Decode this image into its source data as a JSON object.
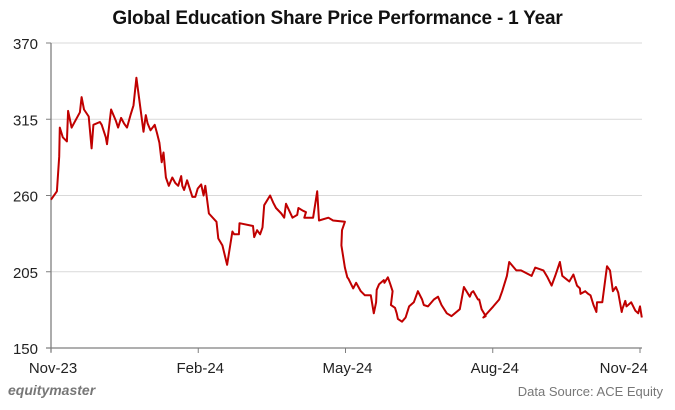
{
  "title": "Global Education Share Price Performance - 1 Year",
  "branding": "equitymaster",
  "source": "Data Source: ACE Equity",
  "colors": {
    "line": "#C00000",
    "grid": "#D9D9D9",
    "axis": "#7F7F7F",
    "text": "#222222"
  },
  "chart_data": {
    "type": "line",
    "title": "Global Education Share Price Performance - 1 Year",
    "xlabel": "",
    "ylabel": "",
    "ylim": [
      150,
      370
    ],
    "yticks": [
      150,
      205,
      260,
      315,
      370
    ],
    "xticks": [
      "Nov-23",
      "Feb-24",
      "May-24",
      "Aug-24",
      "Nov-24"
    ],
    "grid": "horizontal",
    "legend": "none",
    "series": [
      {
        "name": "Global Education",
        "x_frac": [
          0.0,
          0.01,
          0.014,
          0.015,
          0.02,
          0.027,
          0.029,
          0.035,
          0.049,
          0.052,
          0.056,
          0.064,
          0.069,
          0.072,
          0.083,
          0.086,
          0.093,
          0.095,
          0.102,
          0.11,
          0.114,
          0.119,
          0.124,
          0.129,
          0.135,
          0.14,
          0.145,
          0.15,
          0.157,
          0.161,
          0.164,
          0.169,
          0.176,
          0.18,
          0.184,
          0.188,
          0.191,
          0.195,
          0.2,
          0.206,
          0.211,
          0.216,
          0.221,
          0.223,
          0.226,
          0.231,
          0.24,
          0.245,
          0.249,
          0.255,
          0.259,
          0.262,
          0.268,
          0.281,
          0.284,
          0.291,
          0.299,
          0.308,
          0.311,
          0.319,
          0.32,
          0.343,
          0.345,
          0.35,
          0.355,
          0.359,
          0.362,
          0.372,
          0.377,
          0.382,
          0.391,
          0.396,
          0.399,
          0.41,
          0.418,
          0.42,
          0.428,
          0.433,
          0.43,
          0.445,
          0.452,
          0.455,
          0.471,
          0.479,
          0.499,
          0.494,
          0.493,
          0.499,
          0.503,
          0.505,
          0.513,
          0.518,
          0.526,
          0.533,
          0.543,
          0.548,
          0.552,
          0.553,
          0.557,
          0.565,
          0.566,
          0.572,
          0.576,
          0.58,
          0.577,
          0.584,
          0.587,
          0.589,
          0.596,
          0.602,
          0.608,
          0.616,
          0.623,
          0.63,
          0.633,
          0.64,
          0.65,
          0.657,
          0.663,
          0.672,
          0.68,
          0.694,
          0.701,
          0.711,
          0.714,
          0.717,
          0.725,
          0.727,
          0.731,
          0.738,
          0.734,
          0.751,
          0.761,
          0.766,
          0.774,
          0.778,
          0.79,
          0.798,
          0.816,
          0.822,
          0.836,
          0.843,
          0.85,
          0.856,
          0.864,
          0.868,
          0.874,
          0.88,
          0.887,
          0.893,
          0.898,
          0.899,
          0.907,
          0.912,
          0.916,
          0.921,
          0.926,
          0.927,
          0.934,
          0.936,
          0.944,
          0.949,
          0.954,
          0.959,
          0.963,
          0.969,
          0.97,
          0.975,
          0.977,
          0.985,
          0.992,
          0.997,
          1.0,
          1.003
        ],
        "values": [
          257,
          263,
          288,
          309,
          302,
          299,
          321,
          309,
          320,
          331,
          322,
          317,
          294,
          311,
          313,
          311,
          302,
          297,
          322,
          314,
          309,
          316,
          312,
          309,
          318,
          325,
          345,
          329,
          306,
          318,
          312,
          307,
          311,
          305,
          298,
          284,
          291,
          273,
          267,
          273,
          269,
          267,
          274,
          267,
          264,
          271,
          259,
          259,
          265,
          268,
          260,
          267,
          247,
          241,
          229,
          224,
          210,
          234,
          232,
          232,
          240,
          238,
          230,
          235,
          232,
          237,
          253,
          260,
          255,
          251,
          247,
          244,
          254,
          244,
          246,
          251,
          249,
          248,
          244,
          244,
          263,
          242,
          244,
          242,
          241,
          235,
          224,
          208,
          201,
          200,
          193,
          197,
          191,
          188,
          188,
          175,
          183,
          192,
          196,
          199,
          197,
          201,
          196,
          191,
          181,
          179,
          175,
          171,
          169,
          172,
          180,
          183,
          191,
          185,
          181,
          180,
          185,
          187,
          181,
          175,
          173,
          178,
          194,
          187,
          190,
          191,
          185,
          185,
          178,
          173,
          172,
          180,
          185,
          191,
          202,
          212,
          206,
          206,
          202,
          208,
          206,
          201,
          195,
          202,
          212,
          202,
          200,
          198,
          203,
          195,
          193,
          189,
          191,
          189,
          188,
          181,
          176,
          183,
          183,
          183,
          209,
          206,
          191,
          194,
          190,
          176,
          178,
          184,
          180,
          183,
          177,
          175,
          180,
          172,
          181,
          179,
          178,
          176
        ]
      }
    ]
  }
}
